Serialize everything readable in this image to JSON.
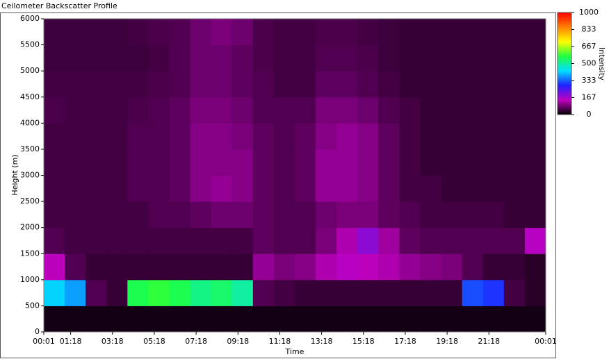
{
  "window_title": "Ceilometer Backscatter Profile",
  "chart_data": {
    "type": "heatmap",
    "x_label": "Time",
    "y_label": "Height (m)",
    "colorbar_label": "Intensity",
    "xlim": [
      0.0167,
      24.0167
    ],
    "xticks": [
      {
        "value": 0.0167,
        "label": "00:01"
      },
      {
        "value": 1.3,
        "label": "01:18"
      },
      {
        "value": 3.3,
        "label": "03:18"
      },
      {
        "value": 5.3,
        "label": "05:18"
      },
      {
        "value": 7.3,
        "label": "07:18"
      },
      {
        "value": 9.3,
        "label": "09:18"
      },
      {
        "value": 11.3,
        "label": "11:18"
      },
      {
        "value": 13.3,
        "label": "13:18"
      },
      {
        "value": 15.3,
        "label": "15:18"
      },
      {
        "value": 17.3,
        "label": "17:18"
      },
      {
        "value": 19.3,
        "label": "19:18"
      },
      {
        "value": 21.3,
        "label": "21:18"
      },
      {
        "value": 24.0167,
        "label": "00:01"
      }
    ],
    "ylim": [
      0,
      6000
    ],
    "yticks": [
      0,
      500,
      1000,
      1500,
      2000,
      2500,
      3000,
      3500,
      4000,
      4500,
      5000,
      5500,
      6000
    ],
    "zlim": [
      0,
      1000
    ],
    "zticks": [
      0,
      167,
      333,
      500,
      667,
      833,
      1000
    ],
    "colorscale": [
      "#000000",
      "#c000c0",
      "#2020ff",
      "#00e0ff",
      "#20ff40",
      "#ffff00",
      "#ff8000",
      "#ff0000"
    ],
    "z": [
      [
        15,
        15,
        15,
        15,
        15,
        15,
        15,
        15,
        15,
        15,
        15,
        15,
        15,
        15,
        15,
        15,
        15,
        15,
        15,
        15,
        15,
        15,
        15,
        15
      ],
      [
        420,
        380,
        60,
        40,
        560,
        580,
        560,
        520,
        540,
        500,
        60,
        50,
        40,
        40,
        40,
        40,
        40,
        40,
        40,
        40,
        320,
        300,
        50,
        30
      ],
      [
        140,
        60,
        40,
        40,
        40,
        40,
        40,
        40,
        40,
        40,
        110,
        90,
        100,
        130,
        150,
        140,
        130,
        110,
        100,
        90,
        60,
        40,
        40,
        30
      ],
      [
        60,
        50,
        50,
        50,
        50,
        50,
        50,
        50,
        50,
        50,
        70,
        60,
        60,
        90,
        130,
        190,
        120,
        70,
        60,
        60,
        60,
        60,
        60,
        150
      ],
      [
        50,
        50,
        50,
        50,
        50,
        60,
        60,
        70,
        80,
        80,
        70,
        60,
        60,
        80,
        90,
        90,
        70,
        60,
        50,
        50,
        50,
        50,
        40,
        40
      ],
      [
        50,
        50,
        50,
        50,
        60,
        60,
        70,
        100,
        110,
        100,
        70,
        60,
        70,
        110,
        110,
        100,
        70,
        50,
        50,
        40,
        40,
        40,
        40,
        40
      ],
      [
        50,
        50,
        50,
        50,
        60,
        60,
        70,
        100,
        100,
        100,
        70,
        60,
        70,
        110,
        110,
        100,
        70,
        50,
        40,
        40,
        40,
        40,
        40,
        40
      ],
      [
        50,
        50,
        50,
        50,
        60,
        60,
        70,
        100,
        100,
        90,
        70,
        60,
        70,
        100,
        110,
        100,
        70,
        50,
        40,
        40,
        40,
        40,
        40,
        40
      ],
      [
        55,
        50,
        50,
        50,
        55,
        60,
        70,
        90,
        90,
        80,
        60,
        60,
        60,
        90,
        90,
        80,
        60,
        50,
        40,
        40,
        40,
        40,
        40,
        40
      ],
      [
        50,
        50,
        50,
        50,
        50,
        55,
        60,
        80,
        80,
        70,
        60,
        50,
        50,
        70,
        70,
        60,
        50,
        40,
        40,
        40,
        40,
        40,
        40,
        40
      ],
      [
        45,
        45,
        45,
        45,
        45,
        50,
        60,
        80,
        80,
        70,
        55,
        50,
        50,
        60,
        60,
        55,
        45,
        40,
        40,
        40,
        40,
        40,
        40,
        40
      ],
      [
        45,
        45,
        45,
        45,
        50,
        55,
        60,
        80,
        90,
        80,
        55,
        50,
        50,
        55,
        55,
        50,
        45,
        40,
        40,
        40,
        40,
        40,
        40,
        40
      ]
    ]
  }
}
